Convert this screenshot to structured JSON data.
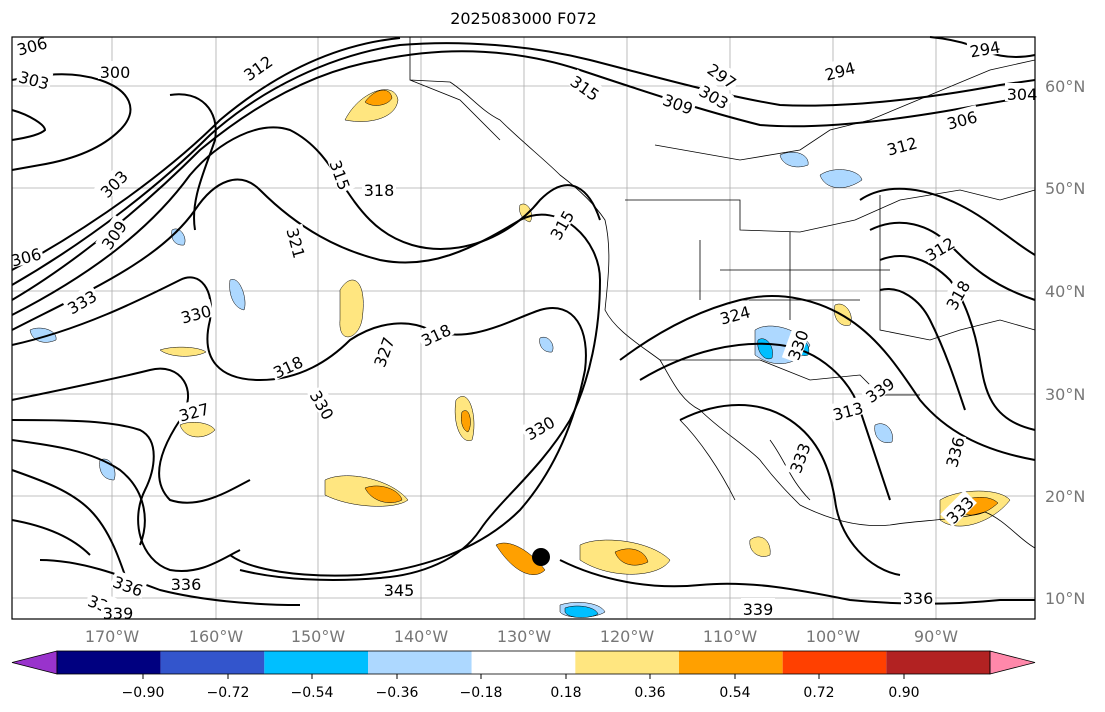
{
  "title": "2025083000 F072",
  "lon_labels": [
    "170°W",
    "160°W",
    "150°W",
    "140°W",
    "130°W",
    "120°W",
    "110°W",
    "100°W",
    "90°W"
  ],
  "lat_labels": [
    "60°N",
    "50°N",
    "40°N",
    "30°N",
    "20°N",
    "10°N"
  ],
  "contour_labels": [
    "306",
    "303",
    "300",
    "312",
    "315",
    "309",
    "303",
    "297",
    "294",
    "294",
    "304",
    "306",
    "312",
    "315",
    "318",
    "303",
    "309",
    "306",
    "315",
    "321",
    "333",
    "330",
    "318",
    "330",
    "318",
    "327",
    "327",
    "330",
    "324",
    "318",
    "312",
    "330",
    "313",
    "339",
    "333",
    "336",
    "345",
    "336",
    "336",
    "333",
    "336",
    "339",
    "336",
    "339"
  ],
  "colorbar": {
    "ticks": [
      "−0.90",
      "−0.72",
      "−0.54",
      "−0.36",
      "−0.18",
      "0.18",
      "0.36",
      "0.54",
      "0.72",
      "0.90"
    ],
    "colors": [
      "#9933cc",
      "#000080",
      "#3355cc",
      "#00bfff",
      "#add8ff",
      "#ffffff",
      "#ffe680",
      "#ffa000",
      "#ff4000",
      "#b22222",
      "#ff88aa"
    ]
  },
  "fill_colors": {
    "yellow": "#ffe680",
    "orange": "#ffa000",
    "lightblue": "#add8ff",
    "blue": "#00bfff"
  },
  "marker_icon": "storm-position-dot"
}
